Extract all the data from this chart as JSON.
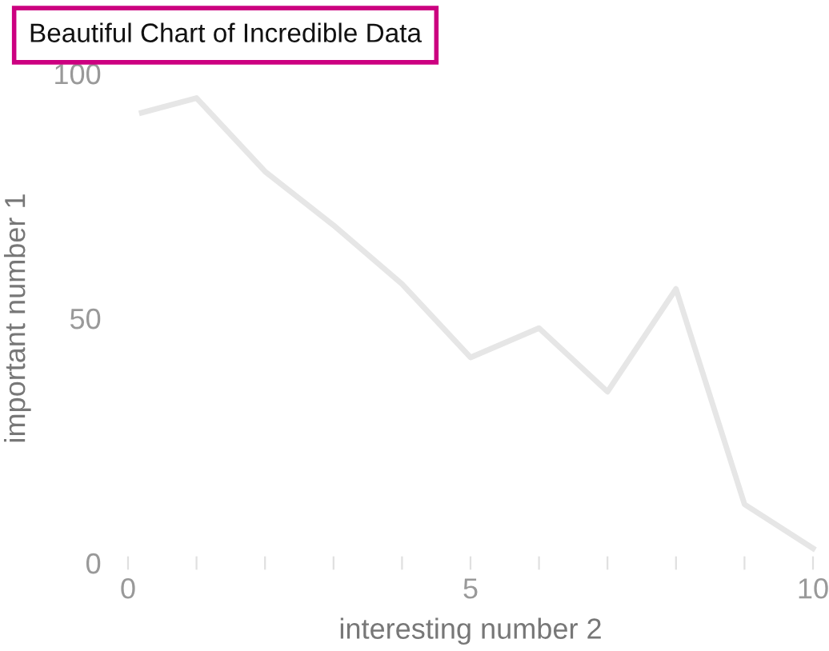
{
  "chart_data": {
    "type": "line",
    "title": "Beautiful Chart of Incredible Data",
    "xlabel": "interesting number 2",
    "ylabel": "important number 1",
    "x": [
      0.2,
      1,
      2,
      3,
      4,
      5,
      6,
      7,
      8,
      9,
      10
    ],
    "series": [
      {
        "color": "#e6e6e6",
        "values": [
          92,
          95,
          80,
          69,
          57,
          42,
          48,
          35,
          56,
          12,
          3
        ]
      }
    ],
    "xlim": [
      0,
      10
    ],
    "ylim": [
      0,
      100
    ],
    "xticks": [
      0,
      {
        "value": 1,
        "label": null
      },
      {
        "value": 2,
        "label": null
      },
      {
        "value": 3,
        "label": null
      },
      {
        "value": 4,
        "label": null
      },
      5,
      {
        "value": 6,
        "label": null
      },
      {
        "value": 7,
        "label": null
      },
      {
        "value": 8,
        "label": null
      },
      {
        "value": 9,
        "label": null
      },
      10
    ],
    "yticks": [
      0,
      50,
      100
    ],
    "grid": false,
    "marker": "none",
    "line_style": "solid"
  }
}
